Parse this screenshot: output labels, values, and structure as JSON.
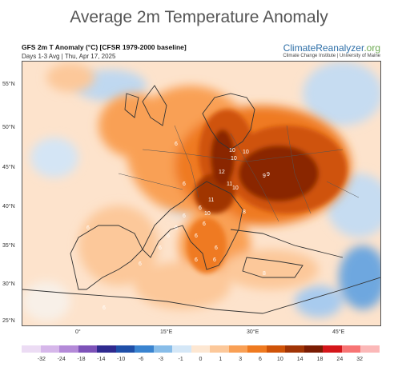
{
  "title": "Average 2m Temperature Anomaly",
  "subtitle_line1": "GFS 2m T Anomaly (°C) [CFSR 1979-2000 baseline]",
  "subtitle_line2": "Days 1-3 Avg | Thu, Apr 17, 2025",
  "brand": {
    "name": "ClimateReanalyzer",
    "tld": ".org",
    "institute": "Climate Change Institute | University of Maine"
  },
  "lat_labels": [
    "55°N",
    "50°N",
    "45°N",
    "40°N",
    "35°N",
    "30°N",
    "25°N"
  ],
  "lon_labels": [
    "0°",
    "15°E",
    "30°E",
    "45°E"
  ],
  "colorbar": {
    "ticks": [
      "-32",
      "-24",
      "-18",
      "-14",
      "-10",
      "-6",
      "-3",
      "-1",
      "0",
      "1",
      "3",
      "6",
      "10",
      "14",
      "18",
      "24",
      "32"
    ],
    "colors": [
      "#ecdcf4",
      "#d6b7ea",
      "#b48ad8",
      "#7d52b8",
      "#2f2a8f",
      "#1f4fa8",
      "#3a84d0",
      "#88bde9",
      "#d4e7f7",
      "#fde7d2",
      "#fcc89a",
      "#f9a055",
      "#ef7a20",
      "#cf5308",
      "#a03405",
      "#7a1c03",
      "#d4161a",
      "#f77474",
      "#fbb8b8"
    ]
  },
  "map_labels": [
    "9",
    "10",
    "10",
    "12",
    "10",
    "9",
    "11",
    "11",
    "10",
    "10",
    "8",
    "6",
    "6",
    "6",
    "6",
    "6",
    "6",
    "6",
    "6",
    "6",
    "6",
    "6",
    "8",
    "6",
    "6",
    "6",
    "6"
  ],
  "colors": {
    "sea_cool": "#d7e8f7",
    "sea_mild": "#fde7d2",
    "land_warm": "#f9a055",
    "hot": "#cf5308",
    "hottest": "#8a2604",
    "border": "#333333"
  }
}
